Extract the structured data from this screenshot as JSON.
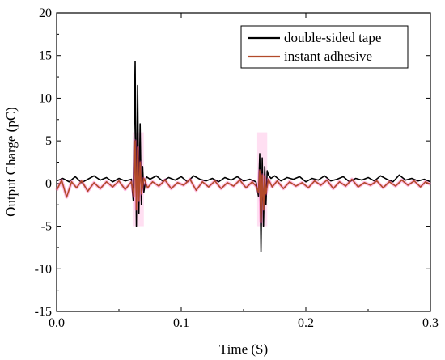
{
  "chart_data": {
    "type": "line",
    "xlabel": "Time (S)",
    "ylabel": "Output Charge (pC)",
    "xlim": [
      0.0,
      0.3
    ],
    "ylim": [
      -15,
      20
    ],
    "x_ticks": [
      "0.0",
      "0.1",
      "0.2",
      "0.3"
    ],
    "y_ticks": [
      "20",
      "15",
      "10",
      "5",
      "0",
      "-5",
      "-10",
      "-15"
    ],
    "x_tick_values": [
      0.0,
      0.1,
      0.2,
      0.3
    ],
    "y_tick_values": [
      20,
      15,
      10,
      5,
      0,
      -5,
      -10,
      -15
    ],
    "grid": false,
    "legend_position": "top-right",
    "series": [
      {
        "name": "double-sided tape",
        "color": "#000000",
        "x": [
          0.0,
          0.005,
          0.01,
          0.015,
          0.02,
          0.025,
          0.03,
          0.035,
          0.04,
          0.045,
          0.05,
          0.055,
          0.06,
          0.0615,
          0.063,
          0.064,
          0.065,
          0.066,
          0.067,
          0.068,
          0.069,
          0.07,
          0.072,
          0.075,
          0.08,
          0.085,
          0.09,
          0.095,
          0.1,
          0.105,
          0.11,
          0.115,
          0.12,
          0.125,
          0.13,
          0.135,
          0.14,
          0.145,
          0.15,
          0.155,
          0.16,
          0.162,
          0.163,
          0.164,
          0.165,
          0.166,
          0.167,
          0.168,
          0.169,
          0.17,
          0.172,
          0.175,
          0.18,
          0.185,
          0.19,
          0.195,
          0.2,
          0.205,
          0.21,
          0.215,
          0.22,
          0.225,
          0.23,
          0.235,
          0.24,
          0.245,
          0.25,
          0.255,
          0.26,
          0.265,
          0.27,
          0.275,
          0.28,
          0.285,
          0.29,
          0.295,
          0.3
        ],
        "y": [
          0.3,
          0.6,
          0.2,
          0.8,
          0.1,
          0.5,
          0.9,
          0.4,
          0.7,
          0.2,
          0.6,
          0.3,
          0.5,
          -2.0,
          14.3,
          -5.0,
          11.5,
          -3.5,
          7.0,
          -2.5,
          2.0,
          -1.0,
          0.8,
          0.5,
          0.9,
          0.3,
          0.7,
          0.4,
          0.8,
          0.2,
          0.9,
          0.5,
          0.3,
          0.6,
          0.2,
          0.7,
          0.4,
          0.8,
          0.3,
          0.5,
          0.2,
          -1.5,
          3.5,
          -8.0,
          3.0,
          -5.0,
          2.0,
          -2.5,
          1.5,
          1.0,
          0.6,
          0.9,
          0.3,
          0.7,
          0.5,
          0.8,
          0.2,
          0.6,
          0.4,
          0.9,
          0.3,
          0.5,
          0.8,
          0.2,
          0.6,
          0.4,
          0.7,
          0.3,
          0.9,
          0.5,
          0.2,
          1.0,
          0.4,
          0.6,
          0.3,
          0.5,
          0.2
        ]
      },
      {
        "name": "instant adhesive",
        "color": "#b24a2a",
        "x": [
          0.0,
          0.004,
          0.008,
          0.012,
          0.016,
          0.02,
          0.025,
          0.03,
          0.035,
          0.04,
          0.045,
          0.05,
          0.055,
          0.06,
          0.062,
          0.063,
          0.064,
          0.065,
          0.066,
          0.067,
          0.068,
          0.07,
          0.073,
          0.077,
          0.082,
          0.087,
          0.092,
          0.097,
          0.102,
          0.107,
          0.112,
          0.117,
          0.122,
          0.127,
          0.132,
          0.137,
          0.142,
          0.147,
          0.152,
          0.157,
          0.16,
          0.162,
          0.163,
          0.164,
          0.165,
          0.166,
          0.167,
          0.168,
          0.17,
          0.173,
          0.177,
          0.182,
          0.187,
          0.192,
          0.197,
          0.202,
          0.207,
          0.212,
          0.217,
          0.222,
          0.227,
          0.232,
          0.237,
          0.242,
          0.247,
          0.252,
          0.257,
          0.262,
          0.267,
          0.272,
          0.277,
          0.282,
          0.287,
          0.292,
          0.296,
          0.3
        ],
        "y": [
          -0.8,
          0.4,
          -1.6,
          0.2,
          -0.5,
          0.3,
          -0.9,
          0.1,
          -0.6,
          0.2,
          -0.4,
          0.3,
          -0.7,
          0.2,
          -1.5,
          5.0,
          -3.0,
          4.2,
          -2.0,
          2.5,
          -1.2,
          0.6,
          -0.5,
          0.2,
          -0.3,
          0.4,
          -0.6,
          0.1,
          -0.2,
          0.5,
          -0.8,
          0.2,
          -0.4,
          0.3,
          -0.6,
          0.1,
          -0.3,
          0.4,
          -0.5,
          0.2,
          -0.3,
          -1.0,
          1.5,
          -4.5,
          1.0,
          -3.0,
          0.8,
          -1.2,
          0.5,
          -0.4,
          0.3,
          -0.6,
          0.2,
          -0.3,
          0.1,
          -0.5,
          0.3,
          -0.2,
          0.4,
          -0.6,
          0.2,
          -0.3,
          0.5,
          -0.4,
          0.1,
          -0.2,
          0.3,
          -0.5,
          0.2,
          -0.3,
          0.4,
          -0.2,
          0.3,
          -0.4,
          0.2,
          -0.1
        ]
      }
    ]
  }
}
